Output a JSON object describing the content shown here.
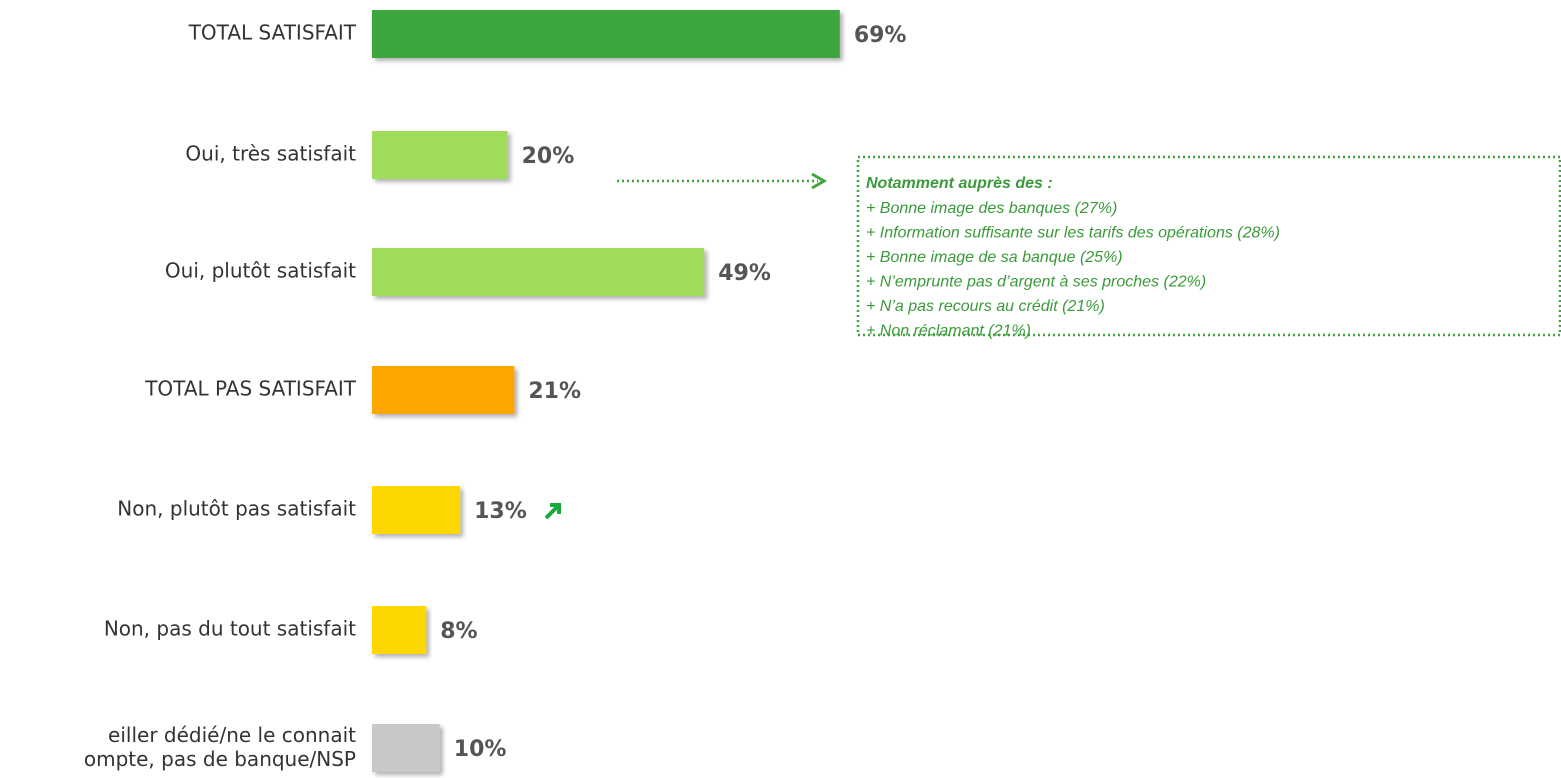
{
  "chart_data": {
    "type": "hbar",
    "categories": [
      "TOTAL SATISFAIT",
      "Oui, très satisfait",
      "Oui, plutôt satisfait",
      "TOTAL PAS SATISFAIT",
      "Non, plutôt pas satisfait",
      "Non, pas du tout satisfait",
      "eiller dédié/ne le connait\nompte, pas de banque/NSP"
    ],
    "values": [
      69,
      20,
      49,
      21,
      13,
      8,
      10
    ],
    "value_labels": [
      "69%",
      "20%",
      "49%",
      "21%",
      "13%",
      "8%",
      "10%"
    ],
    "colors": [
      "#3ea63c",
      "#a0dc5a",
      "#a0dc5a",
      "#ffa500",
      "#ffd700",
      "#ffd700",
      "#c8c8c8"
    ],
    "annotation": {
      "title": "Notamment auprès des :",
      "lines": [
        "+ Bonne image des banques (27%)",
        "+ Information suffisante sur les tarifs des opérations (28%)",
        "+ Bonne image de sa banque (25%)",
        "+ N’emprunte pas d’argent à ses proches (22%)",
        "+ N’a pas recours au crédit (21%)",
        "+ Non réclamant (21%)"
      ]
    }
  }
}
